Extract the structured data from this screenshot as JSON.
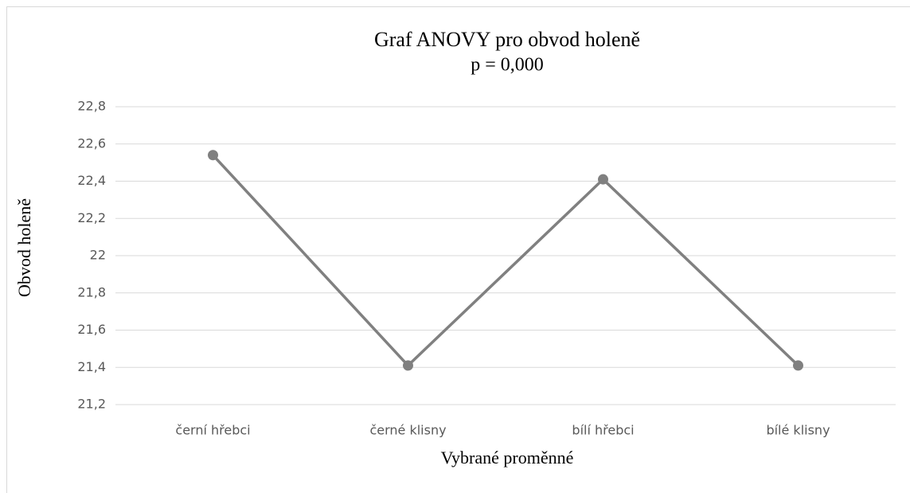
{
  "chart_data": {
    "type": "line",
    "title": "Graf ANOVY pro obvod holeně",
    "subtitle": "p = 0,000",
    "x_label": "Vybrané proměnné",
    "y_label": "Obvod holeně",
    "categories": [
      "černí hřebci",
      "černé klisny",
      "bílí hřebci",
      "bílé klisny"
    ],
    "series": [
      {
        "color": "#808080",
        "values": [
          22.54,
          21.41,
          22.41,
          21.41
        ]
      }
    ],
    "ylim": [
      21.2,
      22.8
    ],
    "yticks": [
      {
        "value": 21.2,
        "label": "21,2"
      },
      {
        "value": 21.4,
        "label": "21,4"
      },
      {
        "value": 21.6,
        "label": "21,6"
      },
      {
        "value": 21.8,
        "label": "21,8"
      },
      22,
      {
        "value": 22.2,
        "label": "22,2"
      },
      {
        "value": 22.4,
        "label": "22,4"
      },
      {
        "value": 22.6,
        "label": "22,6"
      },
      {
        "value": 22.8,
        "label": "22,8"
      }
    ],
    "grid": true
  }
}
